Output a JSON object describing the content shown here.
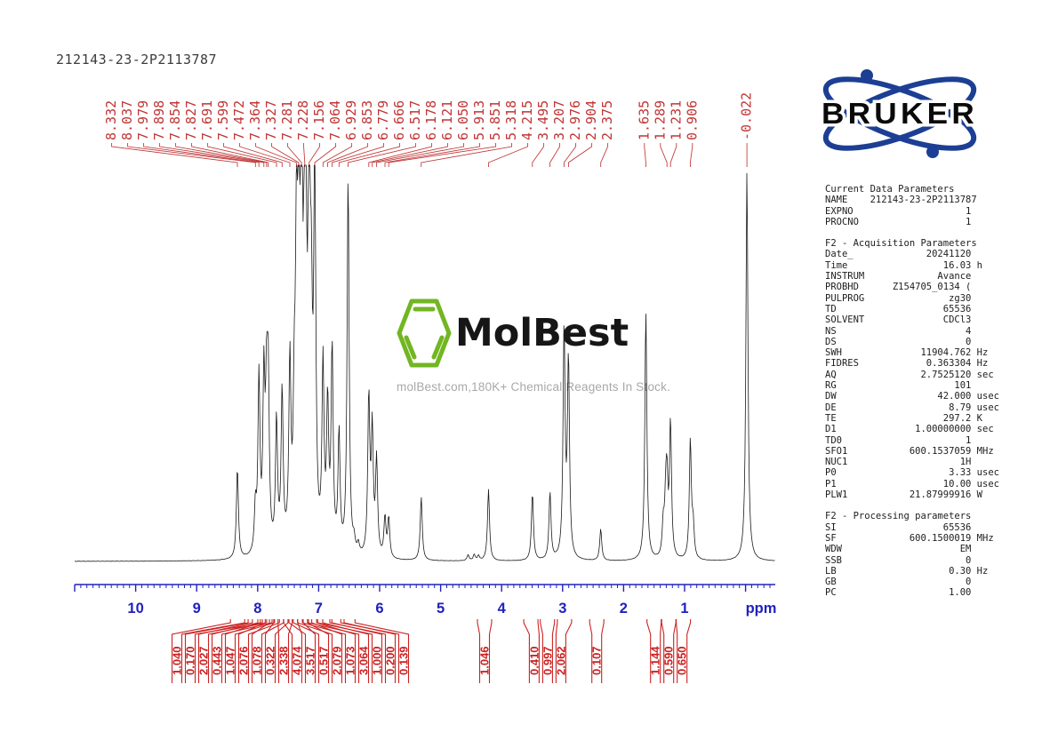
{
  "title": "212143-23-2P2113787",
  "watermark": {
    "logo_text": "MolBest",
    "tagline": "molBest.com,180K+ Chemical Reagents In Stock.",
    "green": "#72b622"
  },
  "bruker": {
    "label": "BRUKER",
    "blue": "#1c3f94"
  },
  "colors": {
    "peak_red": "#c03434",
    "integral_red": "#cc2222",
    "axis_blue": "#2121bd",
    "curve_black": "#1a1a1a"
  },
  "parameters": {
    "sections": [
      {
        "header": "Current Data Parameters",
        "rows": [
          [
            "NAME",
            "212143-23-2P2113787",
            ""
          ],
          [
            "EXPNO",
            "1",
            ""
          ],
          [
            "PROCNO",
            "1",
            ""
          ]
        ]
      },
      {
        "header": "F2 - Acquisition Parameters",
        "rows": [
          [
            "Date_",
            "20241120",
            ""
          ],
          [
            "Time",
            "16.03",
            "h"
          ],
          [
            "INSTRUM",
            "Avance",
            ""
          ],
          [
            "PROBHD",
            "Z154705_0134 (",
            ""
          ],
          [
            "PULPROG",
            "zg30",
            ""
          ],
          [
            "TD",
            "65536",
            ""
          ],
          [
            "SOLVENT",
            "CDCl3",
            ""
          ],
          [
            "NS",
            "4",
            ""
          ],
          [
            "DS",
            "0",
            ""
          ],
          [
            "SWH",
            "11904.762",
            "Hz"
          ],
          [
            "FIDRES",
            "0.363304",
            "Hz"
          ],
          [
            "AQ",
            "2.7525120",
            "sec"
          ],
          [
            "RG",
            "101",
            ""
          ],
          [
            "DW",
            "42.000",
            "usec"
          ],
          [
            "DE",
            "8.79",
            "usec"
          ],
          [
            "TE",
            "297.2",
            "K"
          ],
          [
            "D1",
            "1.00000000",
            "sec"
          ],
          [
            "TD0",
            "1",
            ""
          ],
          [
            "SFO1",
            "600.1537059",
            "MHz"
          ],
          [
            "NUC1",
            "1H",
            ""
          ],
          [
            "P0",
            "3.33",
            "usec"
          ],
          [
            "P1",
            "10.00",
            "usec"
          ],
          [
            "PLW1",
            "21.87999916",
            "W"
          ]
        ]
      },
      {
        "header": "F2 - Processing parameters",
        "rows": [
          [
            "SI",
            "65536",
            ""
          ],
          [
            "SF",
            "600.1500019",
            "MHz"
          ],
          [
            "WDW",
            "EM",
            ""
          ],
          [
            "SSB",
            "0",
            ""
          ],
          [
            "LB",
            "0.30",
            "Hz"
          ],
          [
            "GB",
            "0",
            ""
          ],
          [
            "PC",
            "1.00",
            ""
          ]
        ]
      }
    ]
  },
  "chart_data": {
    "type": "line",
    "title": "1H NMR spectrum",
    "xlabel": "ppm",
    "x_axis": {
      "ticks": [
        10,
        9,
        8,
        7,
        6,
        5,
        4,
        3,
        2,
        1
      ],
      "unit_label": "ppm",
      "min": -0.49,
      "max": 11.0,
      "direction": "reversed",
      "grid": false
    },
    "peaks": [
      {
        "label": "8.332",
        "ppm": 8.332,
        "h": 0.23
      },
      {
        "label": "8.037",
        "ppm": 8.037,
        "h": 0.11
      },
      {
        "label": "7.979",
        "ppm": 7.979,
        "h": 0.44
      },
      {
        "label": "7.898",
        "ppm": 7.898,
        "h": 0.42
      },
      {
        "label": "7.854",
        "ppm": 7.854,
        "h": 0.34
      },
      {
        "label": "7.827",
        "ppm": 7.827,
        "h": 0.4
      },
      {
        "label": "7.691",
        "ppm": 7.691,
        "h": 0.33
      },
      {
        "label": "7.599",
        "ppm": 7.599,
        "h": 0.4
      },
      {
        "label": "7.472",
        "ppm": 7.472,
        "h": 0.46
      },
      {
        "label": "7.364",
        "ppm": 7.364,
        "h": 0.65
      },
      {
        "label": "7.327",
        "ppm": 7.327,
        "h": 0.82
      },
      {
        "label": "7.281",
        "ppm": 7.281,
        "h": 0.99
      },
      {
        "label": "7.228",
        "ppm": 7.228,
        "h": 0.76
      },
      {
        "label": "7.156",
        "ppm": 7.156,
        "h": 1.0
      },
      {
        "label": "7.064",
        "ppm": 7.064,
        "h": 0.97
      },
      {
        "label": "6.929",
        "ppm": 6.929,
        "h": 0.46
      },
      {
        "label": "6.853",
        "ppm": 6.853,
        "h": 0.36
      },
      {
        "label": "6.779",
        "ppm": 6.779,
        "h": 0.51
      },
      {
        "label": "6.666",
        "ppm": 6.666,
        "h": 0.3
      },
      {
        "label": "6.517",
        "ppm": 6.517,
        "h": 0.96
      },
      {
        "label": "6.178",
        "ppm": 6.178,
        "h": 0.4
      },
      {
        "label": "6.121",
        "ppm": 6.121,
        "h": 0.31
      },
      {
        "label": "6.050",
        "ppm": 6.05,
        "h": 0.24
      },
      {
        "label": "5.913",
        "ppm": 5.913,
        "h": 0.1
      },
      {
        "label": "5.851",
        "ppm": 5.851,
        "h": 0.1
      },
      {
        "label": "5.318",
        "ppm": 5.318,
        "h": 0.16
      },
      {
        "label": "4.215",
        "ppm": 4.215,
        "h": 0.18
      },
      {
        "label": "3.495",
        "ppm": 3.495,
        "h": 0.17
      },
      {
        "label": "3.207",
        "ppm": 3.207,
        "h": 0.17
      },
      {
        "label": "2.976",
        "ppm": 2.976,
        "h": 0.58
      },
      {
        "label": "2.904",
        "ppm": 2.904,
        "h": 0.5
      },
      {
        "label": "2.375",
        "ppm": 2.375,
        "h": 0.08
      },
      {
        "label": "1.635",
        "ppm": 1.635,
        "h": 0.63
      },
      {
        "label": "1.289",
        "ppm": 1.289,
        "h": 0.17
      },
      {
        "label": "1.231",
        "ppm": 1.231,
        "h": 0.34
      },
      {
        "label": "0.906",
        "ppm": 0.906,
        "h": 0.3
      },
      {
        "label": "-0.022",
        "ppm": -0.022,
        "h": 0.985
      }
    ],
    "minor_peaks": [
      {
        "ppm": 7.4,
        "h": 0.3
      },
      {
        "ppm": 7.21,
        "h": 0.5
      },
      {
        "ppm": 7.12,
        "h": 0.45
      },
      {
        "ppm": 6.42,
        "h": 0.03
      },
      {
        "ppm": 6.35,
        "h": 0.025
      },
      {
        "ppm": 4.55,
        "h": 0.015
      },
      {
        "ppm": 4.45,
        "h": 0.015
      },
      {
        "ppm": 4.38,
        "h": 0.012
      },
      {
        "ppm": 1.35,
        "h": 0.08
      },
      {
        "ppm": 1.31,
        "h": 0.12
      },
      {
        "ppm": 0.86,
        "h": 0.08
      }
    ],
    "integrations": [
      {
        "value": "1.040",
        "ppm": 8.33
      },
      {
        "value": "0.170",
        "ppm": 8.04
      },
      {
        "value": "2.027",
        "ppm": 7.97
      },
      {
        "value": "0.443",
        "ppm": 7.88
      },
      {
        "value": "1.047",
        "ppm": 7.84
      },
      {
        "value": "2.076",
        "ppm": 7.76
      },
      {
        "value": "1.078",
        "ppm": 7.69
      },
      {
        "value": "0.322",
        "ppm": 7.62
      },
      {
        "value": "2.338",
        "ppm": 7.55
      },
      {
        "value": "4.074",
        "ppm": 7.46
      },
      {
        "value": "3.517",
        "ppm": 7.37
      },
      {
        "value": "0.517",
        "ppm": 7.3
      },
      {
        "value": "2.079",
        "ppm": 7.23
      },
      {
        "value": "1.073",
        "ppm": 7.15
      },
      {
        "value": "3.064",
        "ppm": 7.05
      },
      {
        "value": "1.000",
        "ppm": 6.9
      },
      {
        "value": "0.200",
        "ppm": 6.7
      },
      {
        "value": "0.139",
        "ppm": 6.52
      },
      {
        "value": "1.046",
        "ppm": 4.28
      },
      {
        "value": "0.410",
        "ppm": 3.52
      },
      {
        "value": "0.997",
        "ppm": 3.25
      },
      {
        "value": "2.062",
        "ppm": 2.97
      },
      {
        "value": "0.107",
        "ppm": 2.44
      },
      {
        "value": "1.144",
        "ppm": 1.5
      },
      {
        "value": "0.590",
        "ppm": 1.26
      },
      {
        "value": "0.650",
        "ppm": 1.02
      }
    ]
  }
}
